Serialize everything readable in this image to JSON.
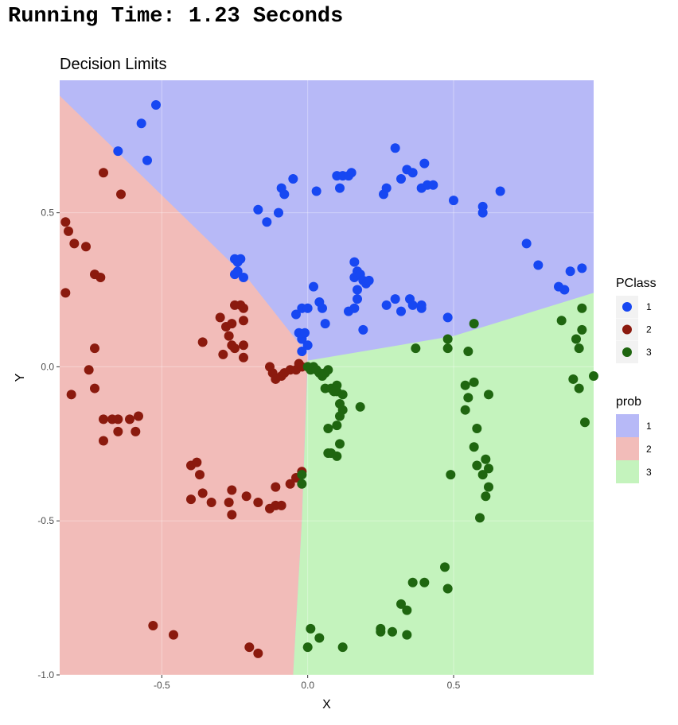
{
  "header": {
    "running_time": "Running Time: 1.23 Seconds"
  },
  "chart_data": {
    "type": "scatter",
    "title": "Decision Limits",
    "xlabel": "X",
    "ylabel": "Y",
    "xlim": [
      -0.85,
      0.98
    ],
    "ylim": [
      -1.0,
      0.93
    ],
    "x_ticks": [
      -0.5,
      0.0,
      0.5
    ],
    "x_tick_labels": [
      "-0.5",
      "0.0",
      "0.5"
    ],
    "y_ticks": [
      -1.0,
      -0.5,
      0.0,
      0.5
    ],
    "y_tick_labels": [
      "-1.0",
      "-0.5",
      "0.0",
      "0.5"
    ],
    "grid": true,
    "legend_position": "right",
    "background_regions": {
      "legend_title": "prob",
      "classes": [
        {
          "label": "1",
          "color": "#b7b9f7"
        },
        {
          "label": "2",
          "color": "#f2bcb9"
        },
        {
          "label": "3",
          "color": "#c4f3bd"
        }
      ],
      "boundaries": {
        "class1_class2": [
          [
            -0.85,
            0.88
          ],
          [
            -0.2,
            0.28
          ],
          [
            0.0,
            0.04
          ]
        ],
        "class1_class3": [
          [
            0.0,
            0.02
          ],
          [
            0.5,
            0.1
          ],
          [
            0.98,
            0.24
          ]
        ],
        "class2_class3": [
          [
            0.0,
            0.02
          ],
          [
            -0.02,
            -0.5
          ],
          [
            -0.05,
            -1.0
          ]
        ]
      }
    },
    "series": [
      {
        "name": "1",
        "color": "#1747f2",
        "points": [
          [
            -0.65,
            0.7
          ],
          [
            -0.52,
            0.85
          ],
          [
            -0.57,
            0.79
          ],
          [
            -0.55,
            0.67
          ],
          [
            -0.17,
            0.51
          ],
          [
            -0.14,
            0.47
          ],
          [
            -0.1,
            0.5
          ],
          [
            -0.09,
            0.58
          ],
          [
            -0.08,
            0.56
          ],
          [
            -0.05,
            0.61
          ],
          [
            0.03,
            0.57
          ],
          [
            0.1,
            0.62
          ],
          [
            0.11,
            0.58
          ],
          [
            0.12,
            0.62
          ],
          [
            0.14,
            0.62
          ],
          [
            0.15,
            0.63
          ],
          [
            0.26,
            0.56
          ],
          [
            0.27,
            0.58
          ],
          [
            0.3,
            0.71
          ],
          [
            0.32,
            0.61
          ],
          [
            0.34,
            0.64
          ],
          [
            0.36,
            0.63
          ],
          [
            0.39,
            0.58
          ],
          [
            0.4,
            0.66
          ],
          [
            0.41,
            0.59
          ],
          [
            0.43,
            0.59
          ],
          [
            0.5,
            0.54
          ],
          [
            0.6,
            0.52
          ],
          [
            0.6,
            0.5
          ],
          [
            0.66,
            0.57
          ],
          [
            0.75,
            0.4
          ],
          [
            0.79,
            0.33
          ],
          [
            0.86,
            0.26
          ],
          [
            0.88,
            0.25
          ],
          [
            0.9,
            0.31
          ],
          [
            0.94,
            0.32
          ],
          [
            -0.25,
            0.35
          ],
          [
            -0.24,
            0.34
          ],
          [
            -0.23,
            0.35
          ],
          [
            -0.22,
            0.29
          ],
          [
            -0.24,
            0.31
          ],
          [
            -0.25,
            0.3
          ],
          [
            -0.04,
            0.17
          ],
          [
            -0.02,
            0.19
          ],
          [
            0.0,
            0.19
          ],
          [
            0.02,
            0.26
          ],
          [
            0.04,
            0.21
          ],
          [
            0.05,
            0.19
          ],
          [
            0.06,
            0.14
          ],
          [
            -0.03,
            0.11
          ],
          [
            -0.02,
            0.09
          ],
          [
            -0.01,
            0.11
          ],
          [
            0.0,
            0.07
          ],
          [
            -0.02,
            0.05
          ],
          [
            0.16,
            0.34
          ],
          [
            0.17,
            0.31
          ],
          [
            0.16,
            0.29
          ],
          [
            0.18,
            0.3
          ],
          [
            0.19,
            0.28
          ],
          [
            0.2,
            0.27
          ],
          [
            0.21,
            0.28
          ],
          [
            0.17,
            0.25
          ],
          [
            0.17,
            0.22
          ],
          [
            0.16,
            0.19
          ],
          [
            0.14,
            0.18
          ],
          [
            0.19,
            0.12
          ],
          [
            0.27,
            0.2
          ],
          [
            0.3,
            0.22
          ],
          [
            0.32,
            0.18
          ],
          [
            0.35,
            0.22
          ],
          [
            0.36,
            0.2
          ],
          [
            0.39,
            0.2
          ],
          [
            0.39,
            0.19
          ],
          [
            0.48,
            0.16
          ]
        ]
      },
      {
        "name": "2",
        "color": "#8b1a0e",
        "points": [
          [
            -0.83,
            0.47
          ],
          [
            -0.82,
            0.44
          ],
          [
            -0.8,
            0.4
          ],
          [
            -0.76,
            0.39
          ],
          [
            -0.73,
            0.3
          ],
          [
            -0.71,
            0.29
          ],
          [
            -0.83,
            0.24
          ],
          [
            -0.73,
            0.06
          ],
          [
            -0.75,
            -0.01
          ],
          [
            -0.73,
            -0.07
          ],
          [
            -0.81,
            -0.09
          ],
          [
            -0.7,
            0.63
          ],
          [
            -0.64,
            0.56
          ],
          [
            -0.7,
            -0.17
          ],
          [
            -0.67,
            -0.17
          ],
          [
            -0.65,
            -0.17
          ],
          [
            -0.61,
            -0.17
          ],
          [
            -0.58,
            -0.16
          ],
          [
            -0.7,
            -0.24
          ],
          [
            -0.65,
            -0.21
          ],
          [
            -0.59,
            -0.21
          ],
          [
            -0.3,
            0.16
          ],
          [
            -0.28,
            0.13
          ],
          [
            -0.26,
            0.14
          ],
          [
            -0.25,
            0.2
          ],
          [
            -0.23,
            0.2
          ],
          [
            -0.22,
            0.19
          ],
          [
            -0.22,
            0.15
          ],
          [
            -0.27,
            0.1
          ],
          [
            -0.26,
            0.07
          ],
          [
            -0.25,
            0.06
          ],
          [
            -0.22,
            0.07
          ],
          [
            -0.22,
            0.03
          ],
          [
            -0.29,
            0.04
          ],
          [
            -0.36,
            0.08
          ],
          [
            -0.13,
            0.0
          ],
          [
            -0.12,
            -0.02
          ],
          [
            -0.11,
            -0.04
          ],
          [
            -0.09,
            -0.03
          ],
          [
            -0.08,
            -0.02
          ],
          [
            -0.06,
            -0.01
          ],
          [
            -0.04,
            -0.01
          ],
          [
            -0.03,
            0.01
          ],
          [
            -0.02,
            0.0
          ],
          [
            -0.4,
            -0.32
          ],
          [
            -0.38,
            -0.31
          ],
          [
            -0.37,
            -0.35
          ],
          [
            -0.36,
            -0.41
          ],
          [
            -0.4,
            -0.43
          ],
          [
            -0.33,
            -0.44
          ],
          [
            -0.26,
            -0.4
          ],
          [
            -0.27,
            -0.44
          ],
          [
            -0.26,
            -0.48
          ],
          [
            -0.21,
            -0.42
          ],
          [
            -0.17,
            -0.44
          ],
          [
            -0.13,
            -0.46
          ],
          [
            -0.11,
            -0.45
          ],
          [
            -0.11,
            -0.39
          ],
          [
            -0.09,
            -0.45
          ],
          [
            -0.06,
            -0.38
          ],
          [
            -0.04,
            -0.36
          ],
          [
            -0.02,
            -0.34
          ],
          [
            -0.53,
            -0.84
          ],
          [
            -0.46,
            -0.87
          ],
          [
            -0.2,
            -0.91
          ],
          [
            -0.17,
            -0.93
          ]
        ]
      },
      {
        "name": "3",
        "color": "#1f6610",
        "points": [
          [
            0.0,
            0.0
          ],
          [
            0.01,
            -0.01
          ],
          [
            0.02,
            0.0
          ],
          [
            0.03,
            -0.01
          ],
          [
            0.04,
            -0.02
          ],
          [
            0.05,
            -0.03
          ],
          [
            0.06,
            -0.02
          ],
          [
            0.07,
            -0.01
          ],
          [
            0.06,
            -0.07
          ],
          [
            0.08,
            -0.07
          ],
          [
            0.09,
            -0.08
          ],
          [
            0.1,
            -0.06
          ],
          [
            0.1,
            -0.08
          ],
          [
            0.12,
            -0.09
          ],
          [
            0.11,
            -0.12
          ],
          [
            0.12,
            -0.14
          ],
          [
            0.11,
            -0.16
          ],
          [
            0.18,
            -0.13
          ],
          [
            0.07,
            -0.2
          ],
          [
            0.1,
            -0.19
          ],
          [
            0.11,
            -0.25
          ],
          [
            0.07,
            -0.28
          ],
          [
            0.08,
            -0.28
          ],
          [
            0.1,
            -0.29
          ],
          [
            -0.02,
            -0.35
          ],
          [
            -0.02,
            -0.38
          ],
          [
            0.37,
            0.06
          ],
          [
            0.48,
            0.09
          ],
          [
            0.48,
            0.06
          ],
          [
            0.55,
            0.05
          ],
          [
            0.57,
            0.14
          ],
          [
            0.54,
            -0.06
          ],
          [
            0.55,
            -0.1
          ],
          [
            0.57,
            -0.05
          ],
          [
            0.54,
            -0.14
          ],
          [
            0.62,
            -0.09
          ],
          [
            0.58,
            -0.2
          ],
          [
            0.57,
            -0.26
          ],
          [
            0.58,
            -0.32
          ],
          [
            0.6,
            -0.35
          ],
          [
            0.61,
            -0.3
          ],
          [
            0.62,
            -0.33
          ],
          [
            0.62,
            -0.39
          ],
          [
            0.61,
            -0.42
          ],
          [
            0.59,
            -0.49
          ],
          [
            0.49,
            -0.35
          ],
          [
            0.87,
            0.15
          ],
          [
            0.92,
            0.09
          ],
          [
            0.94,
            0.12
          ],
          [
            0.94,
            0.19
          ],
          [
            0.93,
            0.06
          ],
          [
            0.91,
            -0.04
          ],
          [
            0.93,
            -0.07
          ],
          [
            0.98,
            -0.03
          ],
          [
            0.95,
            -0.18
          ],
          [
            0.47,
            -0.65
          ],
          [
            0.48,
            -0.72
          ],
          [
            0.36,
            -0.7
          ],
          [
            0.4,
            -0.7
          ],
          [
            0.32,
            -0.77
          ],
          [
            0.34,
            -0.79
          ],
          [
            0.25,
            -0.85
          ],
          [
            0.25,
            -0.86
          ],
          [
            0.29,
            -0.86
          ],
          [
            0.34,
            -0.87
          ],
          [
            0.01,
            -0.85
          ],
          [
            0.04,
            -0.88
          ],
          [
            0.0,
            -0.91
          ],
          [
            0.12,
            -0.91
          ]
        ]
      }
    ]
  }
}
